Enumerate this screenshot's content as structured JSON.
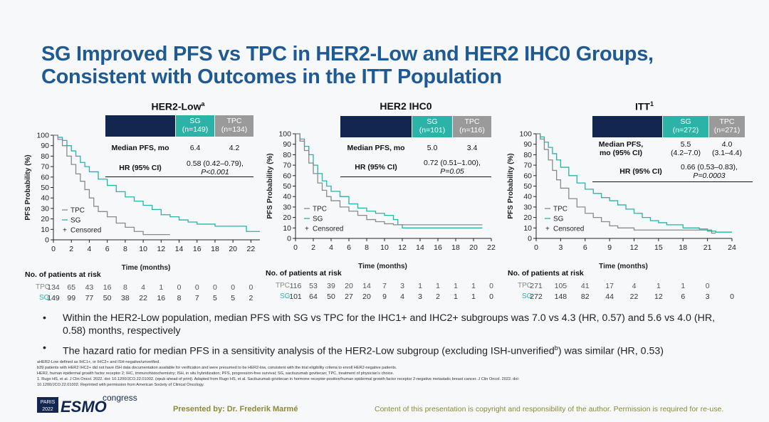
{
  "title_line1": "SG Improved PFS vs TPC in HER2-Low and HER2 IHC0 Groups,",
  "title_line2": "Consistent with Outcomes in the ITT Population",
  "colors": {
    "sg": "#2ab3a6",
    "tpc": "#8a8a8a",
    "navy": "#12264f",
    "title": "#1f5a92"
  },
  "panels": [
    {
      "title": "HER2-Low",
      "title_sup": "a",
      "sg_head1": "SG",
      "sg_head2": "(n=149)",
      "tpc_head1": "TPC",
      "tpc_head2": "(n=134)",
      "median_label": "Median PFS, mo",
      "median_sg": "6.4",
      "median_tpc": "4.2",
      "hr_label": "HR (95% CI)",
      "hr_line1": "0.58 (0.42–0.79),",
      "hr_line2": "P<0.001",
      "risk_sg": [
        "149",
        "99",
        "77",
        "50",
        "38",
        "22",
        "16",
        "8",
        "7",
        "5",
        "5",
        "2"
      ],
      "risk_tpc": [
        "134",
        "65",
        "43",
        "16",
        "8",
        "4",
        "1",
        "0",
        "0",
        "0",
        "0",
        "0"
      ]
    },
    {
      "title": "HER2 IHC0",
      "title_sup": "",
      "sg_head1": "SG",
      "sg_head2": "(n=101)",
      "tpc_head1": "TPC",
      "tpc_head2": "(n=116)",
      "median_label": "Median PFS, mo",
      "median_sg": "5.0",
      "median_tpc": "3.4",
      "hr_label": "HR (95% CI)",
      "hr_line1": "0.72 (0.51–1.00),",
      "hr_line2": "P=0.05",
      "risk_sg": [
        "101",
        "64",
        "50",
        "27",
        "20",
        "9",
        "4",
        "3",
        "2",
        "1",
        "1",
        "0"
      ],
      "risk_tpc": [
        "116",
        "53",
        "39",
        "20",
        "14",
        "7",
        "3",
        "1",
        "1",
        "1",
        "1",
        "0"
      ]
    },
    {
      "title": "ITT",
      "title_sup": "1",
      "sg_head1": "SG",
      "sg_head2": "(n=272)",
      "tpc_head1": "TPC",
      "tpc_head2": "(n=271)",
      "median_label": "Median PFS,",
      "median_label2": "mo (95% CI)",
      "median_sg": "5.5",
      "median_sg2": "(4.2–7.0)",
      "median_tpc": "4.0",
      "median_tpc2": "(3.1–4.4)",
      "hr_label": "HR (95% CI)",
      "hr_line1": "0.66 (0.53–0.83),",
      "hr_line2": "P=0.0003",
      "risk_sg": [
        "272",
        "148",
        "82",
        "44",
        "22",
        "12",
        "6",
        "3",
        "0"
      ],
      "risk_tpc": [
        "271",
        "105",
        "41",
        "17",
        "4",
        "1",
        "1",
        "0",
        ""
      ]
    }
  ],
  "common": {
    "ylabel": "PFS Probability (%)",
    "xlabel": "Time (months)",
    "risk_header": "No. of patients at risk",
    "risk_tpc_label": "TPC",
    "risk_sg_label": "SG",
    "legend_tpc": "TPC",
    "legend_sg": "SG",
    "legend_censored": "Censored"
  },
  "chart_data": [
    {
      "type": "line",
      "title": "HER2-Low",
      "xlabel": "Time (months)",
      "ylabel": "PFS Probability (%)",
      "xlim": [
        0,
        23
      ],
      "ylim": [
        0,
        100
      ],
      "xticks": [
        0,
        2,
        4,
        6,
        8,
        10,
        12,
        14,
        16,
        18,
        20,
        22
      ],
      "yticks": [
        0,
        10,
        20,
        30,
        40,
        50,
        60,
        70,
        80,
        90,
        100
      ],
      "series": [
        {
          "name": "SG",
          "x": [
            0,
            0.5,
            1,
            1.5,
            2,
            2.5,
            3,
            3.5,
            4,
            5,
            6,
            7,
            8,
            9,
            10,
            11,
            12,
            13,
            14,
            15,
            16,
            18,
            20,
            21,
            21.5,
            23
          ],
          "y": [
            100,
            98,
            95,
            90,
            85,
            80,
            74,
            70,
            65,
            58,
            52,
            46,
            41,
            37,
            33,
            29,
            24,
            22,
            19,
            17,
            15,
            13,
            13,
            13,
            8,
            8
          ]
        },
        {
          "name": "TPC",
          "x": [
            0,
            0.5,
            1,
            1.5,
            2,
            2.5,
            3,
            3.5,
            4,
            4.5,
            5,
            6,
            7,
            8,
            9,
            10,
            11,
            12,
            13
          ],
          "y": [
            100,
            96,
            90,
            80,
            72,
            63,
            56,
            48,
            40,
            32,
            27,
            22,
            16,
            12,
            8,
            5,
            5,
            5,
            5
          ]
        }
      ]
    },
    {
      "type": "line",
      "title": "HER2 IHC0",
      "xlabel": "Time (months)",
      "ylabel": "PFS Probability (%)",
      "xlim": [
        0,
        22
      ],
      "ylim": [
        0,
        100
      ],
      "xticks": [
        0,
        2,
        4,
        6,
        8,
        10,
        12,
        14,
        16,
        18,
        20,
        22
      ],
      "yticks": [
        0,
        10,
        20,
        30,
        40,
        50,
        60,
        70,
        80,
        90,
        100
      ],
      "series": [
        {
          "name": "SG",
          "x": [
            0,
            0.5,
            1,
            1.5,
            2,
            2.5,
            3,
            3.5,
            4,
            5,
            6,
            7,
            8,
            9,
            10,
            11,
            11.5,
            12,
            14,
            16,
            18,
            20,
            21
          ],
          "y": [
            100,
            95,
            88,
            80,
            70,
            62,
            55,
            50,
            45,
            40,
            33,
            29,
            26,
            24,
            22,
            18,
            13,
            10,
            10,
            10,
            10,
            10,
            10
          ]
        },
        {
          "name": "TPC",
          "x": [
            0,
            0.5,
            1,
            1.5,
            2,
            2.5,
            3,
            3.5,
            4,
            5,
            6,
            7,
            8,
            9,
            10,
            11,
            12,
            14,
            16,
            18,
            20,
            21
          ],
          "y": [
            100,
            93,
            84,
            72,
            62,
            53,
            46,
            40,
            36,
            30,
            26,
            22,
            18,
            16,
            14,
            13,
            13,
            13,
            13,
            13,
            13,
            13
          ]
        }
      ]
    },
    {
      "type": "line",
      "title": "ITT",
      "xlabel": "Time (months)",
      "ylabel": "PFS Probability (%)",
      "xlim": [
        0,
        24
      ],
      "ylim": [
        0,
        100
      ],
      "xticks": [
        0,
        3,
        6,
        9,
        12,
        15,
        18,
        21,
        24
      ],
      "yticks": [
        0,
        10,
        20,
        30,
        40,
        50,
        60,
        70,
        80,
        90,
        100
      ],
      "series": [
        {
          "name": "SG",
          "x": [
            0,
            0.5,
            1,
            1.5,
            2,
            2.5,
            3,
            4,
            5,
            6,
            7,
            8,
            9,
            10,
            11,
            12,
            13,
            14,
            15,
            16,
            18,
            20,
            21,
            22,
            24
          ],
          "y": [
            100,
            97,
            92,
            87,
            81,
            75,
            68,
            60,
            53,
            47,
            43,
            39,
            36,
            32,
            28,
            24,
            20,
            17,
            15,
            13,
            10,
            9,
            7,
            6,
            6
          ]
        },
        {
          "name": "TPC",
          "x": [
            0,
            0.5,
            1,
            1.5,
            2,
            2.5,
            3,
            4,
            5,
            6,
            7,
            8,
            9,
            10,
            12,
            14,
            15,
            18,
            20,
            21,
            21.5,
            22
          ],
          "y": [
            100,
            95,
            85,
            75,
            65,
            56,
            48,
            38,
            30,
            24,
            20,
            16,
            12,
            10,
            8,
            8,
            8,
            8,
            8,
            8,
            5,
            5
          ]
        }
      ]
    }
  ],
  "bullets": [
    {
      "text": "Within the HER2-Low population, median PFS with SG vs TPC for the IHC1+ and IHC2+ subgroups was 7.0 vs 4.3 (HR, 0.57) and 5.6 vs 4.0 (HR, 0.58) months, respectively"
    },
    {
      "text_a": "The hazard ratio for median PFS in a sensitivity analysis of the HER2-Low subgroup (excluding ISH-unverified",
      "sup": "b",
      "text_b": ") was similar (HR, 0.53)"
    }
  ],
  "footnotes": [
    "aHER2-Low defined as IHC1+, or IHC2+ and ISH-negative/unverified.",
    "b39 patients with HER2 IHC2+ did not have ISH data documentation available for verification and were presumed to be HER2-low, consistent with the trial eligibility criteria to enroll HER2-negative patients.",
    "HER2, human epidermal growth factor receptor 2; IHC, immunohistochemistry; ISH, in situ hybridization; PFS, progression-free survival; SG, sacituzumab govitecan; TPC, treatment of physician's choice.",
    "1. Rugo HS, et al. J Clin Oncol. 2022. doi: 10.1200/JCO.22.01002. (epub ahead of print). Adapted from Rugo HS, et al. Sacituzumab govitecan in hormone receptor-positive/human epidermal growth factor receptor 2-negative metastatic breast cancer. J Clin Oncol. 2022. doi:",
    "10.1200/JCO.22.01002. Reprinted with permission from American Society of Clinical Oncology."
  ],
  "logo": {
    "city": "PARIS",
    "year": "2022",
    "brand": "ESMO",
    "word": "congress"
  },
  "presented_by": "Presented by: Dr. Frederik Marmé",
  "copyright": "Content of this presentation is copyright and responsibility of the author. Permission is required for re-use."
}
